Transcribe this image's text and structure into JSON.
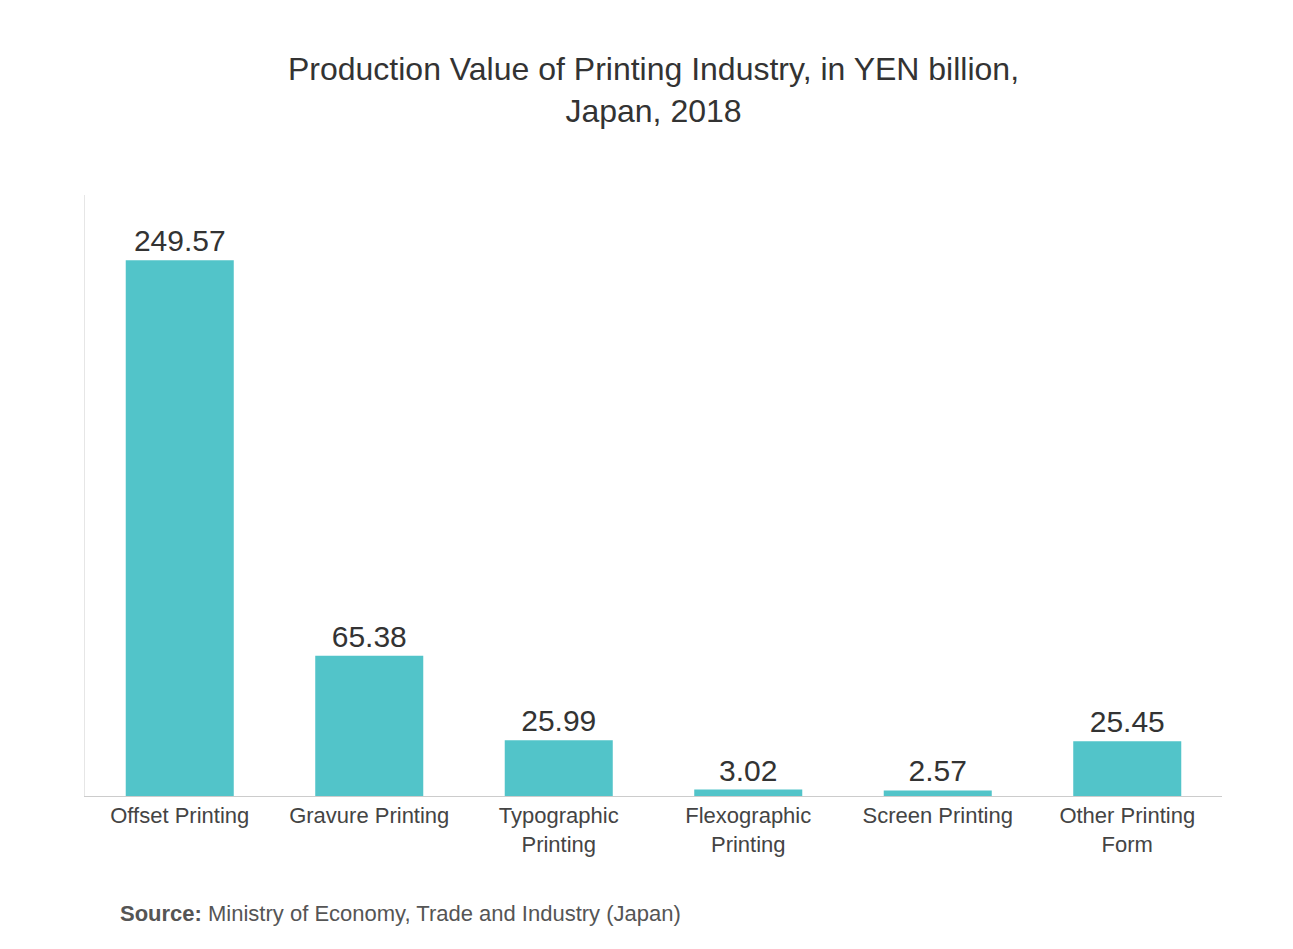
{
  "chart_data": {
    "type": "bar",
    "title": [
      "Production Value of Printing Industry, in YEN billion,",
      "Japan, 2018"
    ],
    "categories": [
      "Offset Printing",
      "Gravure Printing",
      "Typographic Printing",
      "Flexographic Printing",
      "Screen Printing",
      "Other Printing Form"
    ],
    "values": [
      249.57,
      65.38,
      25.99,
      3.02,
      2.57,
      25.45
    ],
    "color": "#52c4c9",
    "ylim": [
      0,
      280
    ],
    "grid": false,
    "data_labels": true,
    "tick_labels": "x",
    "source": {
      "label": "Source:",
      "text": "Ministry of Economy, Trade and Industry (Japan)"
    }
  }
}
